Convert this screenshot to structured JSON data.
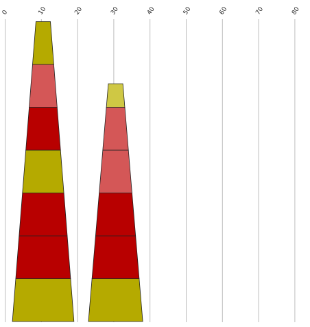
{
  "chart_data": {
    "type": "bar",
    "subtype": "tapered-stacked-columns",
    "title": "",
    "xlabel": "",
    "ylabel": "",
    "x_axis": {
      "ticks": [
        0,
        10,
        20,
        30,
        40,
        50,
        60,
        70,
        80
      ],
      "tick_labels": [
        "0",
        "10",
        "20",
        "30",
        "40",
        "50",
        "60",
        "70",
        "80"
      ],
      "range": [
        0,
        80
      ],
      "tick_label_rotation": "diagonal",
      "position": "top"
    },
    "grid": true,
    "legend": "none",
    "columns": [
      {
        "center": 10.5,
        "base_left": 2,
        "base_right": 19,
        "top_left": 8.5,
        "top_right": 12.5,
        "segments": [
          {
            "color": "#b5aa00",
            "height": 1
          },
          {
            "color": "#b80000",
            "height": 1
          },
          {
            "color": "#b80000",
            "height": 1
          },
          {
            "color": "#b5aa00",
            "height": 1
          },
          {
            "color": "#b80000",
            "height": 1
          },
          {
            "color": "#d45757",
            "height": 1
          },
          {
            "color": "#b5aa00",
            "height": 1
          }
        ]
      },
      {
        "center": 30.5,
        "base_left": 23,
        "base_right": 38,
        "top_left": 28.5,
        "top_right": 32.5,
        "segments": [
          {
            "color": "#b5aa00",
            "height": 1
          },
          {
            "color": "#b80000",
            "height": 1
          },
          {
            "color": "#b80000",
            "height": 1
          },
          {
            "color": "#d45757",
            "height": 1
          },
          {
            "color": "#d45757",
            "height": 1
          },
          {
            "color": "#cfc844",
            "height": 0.55
          }
        ]
      }
    ]
  }
}
